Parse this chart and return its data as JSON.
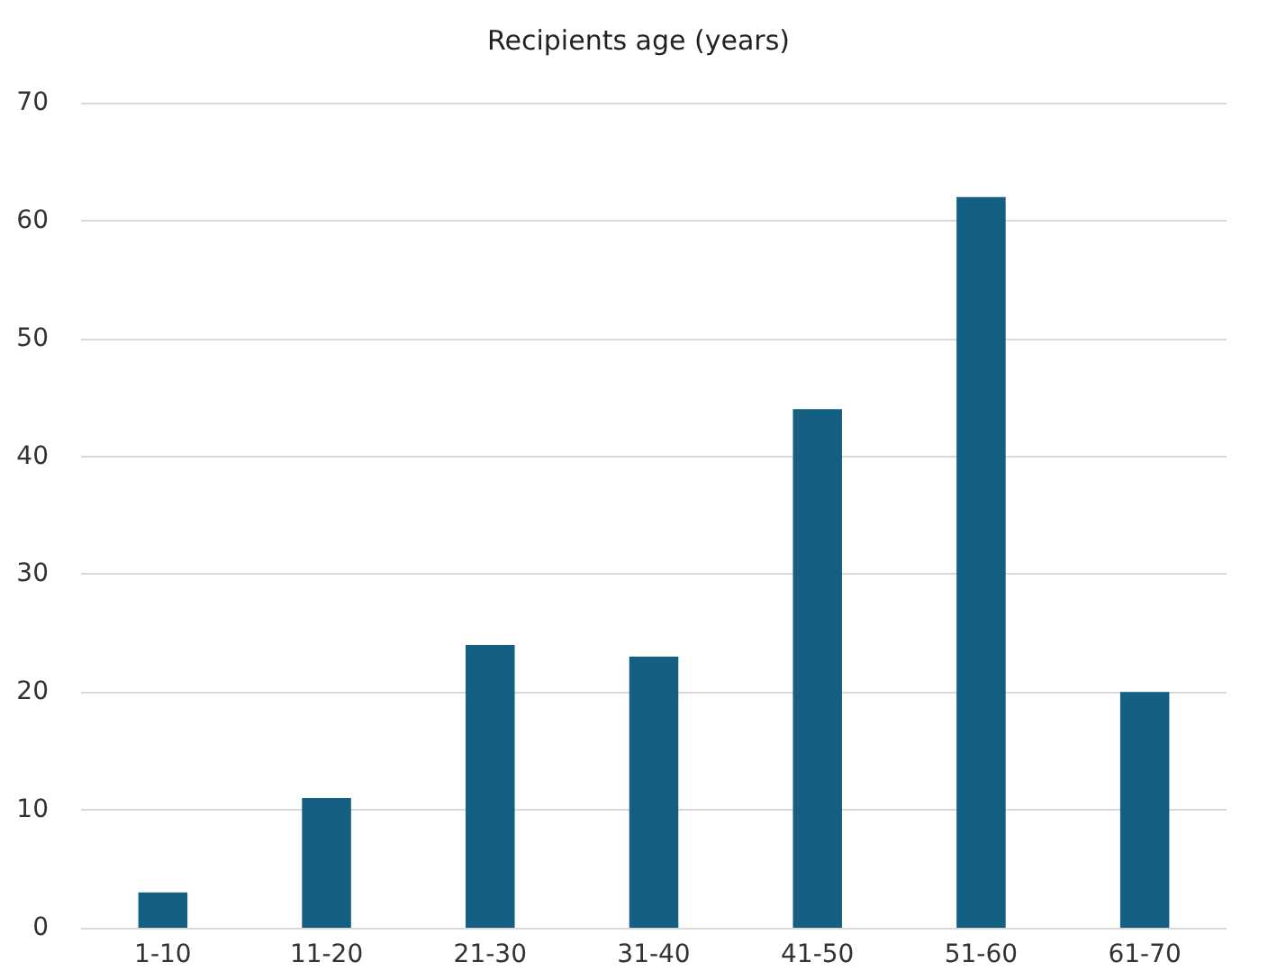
{
  "chart_data": {
    "type": "bar",
    "title": "Recipients age (years)",
    "categories": [
      "1-10",
      "11-20",
      "21-30",
      "31-40",
      "41-50",
      "51-60",
      "61-70"
    ],
    "values": [
      3,
      11,
      24,
      23,
      44,
      62,
      20
    ],
    "color": "#156082",
    "ylim": [
      0,
      70
    ],
    "yticks": [
      0,
      10,
      20,
      30,
      40,
      50,
      60,
      70
    ],
    "grid": "y"
  }
}
